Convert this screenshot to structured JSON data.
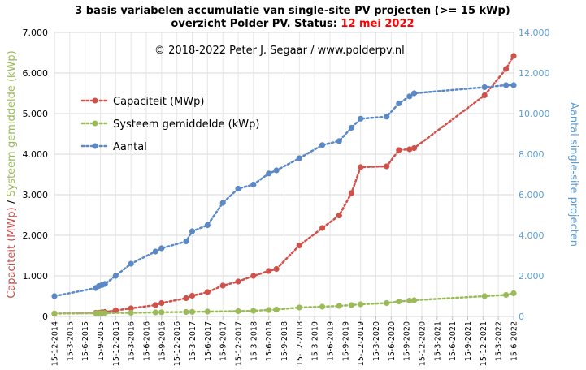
{
  "chart_data": {
    "type": "line",
    "title_line1": "3 basis variabelen accumulatie van single-site PV projecten (>= 15 kWp)",
    "title_line2_prefix": "overzicht Polder PV. Status: ",
    "title_line2_date": "12 mei 2022",
    "annotation": "© 2018-2022  Peter J. Segaar / www.polderpv.nl",
    "left_axis": {
      "label_part1": "Capaciteit (MWp)",
      "label_sep": " / ",
      "label_part2": "Systeem gemiddelde  (kWp)",
      "min": 0,
      "max": 7000,
      "step": 1000,
      "tick_labels": [
        "0",
        "1.000",
        "2.000",
        "3.000",
        "4.000",
        "5.000",
        "6.000",
        "7.000"
      ]
    },
    "right_axis": {
      "label": "Aantal single-site projecten",
      "min": 0,
      "max": 14000,
      "step": 2000,
      "tick_labels": [
        "0",
        "2.000",
        "4.000",
        "6.000",
        "8.000",
        "10.000",
        "12.000",
        "14.000"
      ]
    },
    "x_axis": {
      "tick_labels": [
        "15-12-2014",
        "15-3-2015",
        "15-6-2015",
        "15-9-2015",
        "15-12-2015",
        "15-3-2016",
        "15-6-2016",
        "15-9-2016",
        "15-12-2016",
        "15-3-2017",
        "15-6-2017",
        "15-9-2017",
        "15-12-2017",
        "15-3-2018",
        "15-6-2018",
        "15-9-2018",
        "15-12-2018",
        "15-3-2019",
        "15-6-2019",
        "15-9-2019",
        "15-12-2019",
        "15-3-2020",
        "15-6-2020",
        "15-9-2020",
        "15-12-2020",
        "15-3-2021",
        "15-6-2021",
        "15-9-2021",
        "15-12-2021",
        "15-3-2022",
        "15-6-2022"
      ]
    },
    "legend": {
      "position": "upper-left"
    },
    "colors": {
      "capaciteit": "#d0504a",
      "systeem": "#9bbb59",
      "aantal": "#5b88c6",
      "right_axis": "#5b9bd5"
    },
    "series": [
      {
        "name": "Capaciteit (MWp)",
        "axis": "left",
        "x": [
          0,
          2.7,
          2.9,
          3.1,
          3.3,
          4.0,
          5.0,
          6.6,
          7.0,
          8.6,
          9.0,
          10.0,
          11.0,
          12.0,
          13.0,
          14.0,
          14.5,
          16.0,
          17.5,
          18.6,
          19.4,
          20.0,
          21.7,
          22.5,
          23.2,
          23.5,
          28.1,
          29.5,
          30.0
        ],
        "values": [
          70,
          90,
          95,
          105,
          110,
          150,
          200,
          280,
          330,
          450,
          510,
          600,
          760,
          860,
          1000,
          1120,
          1170,
          1750,
          2180,
          2490,
          3040,
          3680,
          3700,
          4100,
          4120,
          4150,
          5450,
          6100,
          6420
        ]
      },
      {
        "name": "Systeem gemiddelde (kWp)",
        "axis": "left",
        "x": [
          0,
          2.7,
          2.9,
          3.1,
          3.3,
          5.0,
          6.6,
          7.0,
          8.6,
          9.0,
          10.0,
          12.0,
          13.0,
          14.0,
          14.5,
          16.0,
          17.5,
          18.6,
          19.4,
          20.0,
          21.7,
          22.5,
          23.2,
          23.5,
          28.1,
          29.5,
          30.0
        ],
        "values": [
          75,
          80,
          82,
          83,
          85,
          90,
          100,
          105,
          110,
          115,
          120,
          130,
          140,
          160,
          170,
          220,
          240,
          260,
          280,
          300,
          330,
          370,
          390,
          400,
          500,
          530,
          570
        ]
      },
      {
        "name": "Aantal",
        "axis": "right",
        "x": [
          0,
          2.7,
          2.9,
          3.1,
          3.3,
          4.0,
          5.0,
          6.6,
          7.0,
          8.6,
          9.0,
          10.0,
          11.0,
          12.0,
          13.0,
          14.0,
          14.5,
          16.0,
          17.5,
          18.6,
          19.4,
          20.0,
          21.7,
          22.5,
          23.2,
          23.5,
          28.1,
          29.5,
          30.0
        ],
        "values": [
          1000,
          1400,
          1500,
          1550,
          1600,
          2000,
          2600,
          3200,
          3360,
          3700,
          4200,
          4500,
          5600,
          6300,
          6500,
          7050,
          7200,
          7800,
          8450,
          8650,
          9300,
          9750,
          9850,
          10500,
          10850,
          11000,
          11300,
          11400,
          11400
        ]
      }
    ]
  }
}
